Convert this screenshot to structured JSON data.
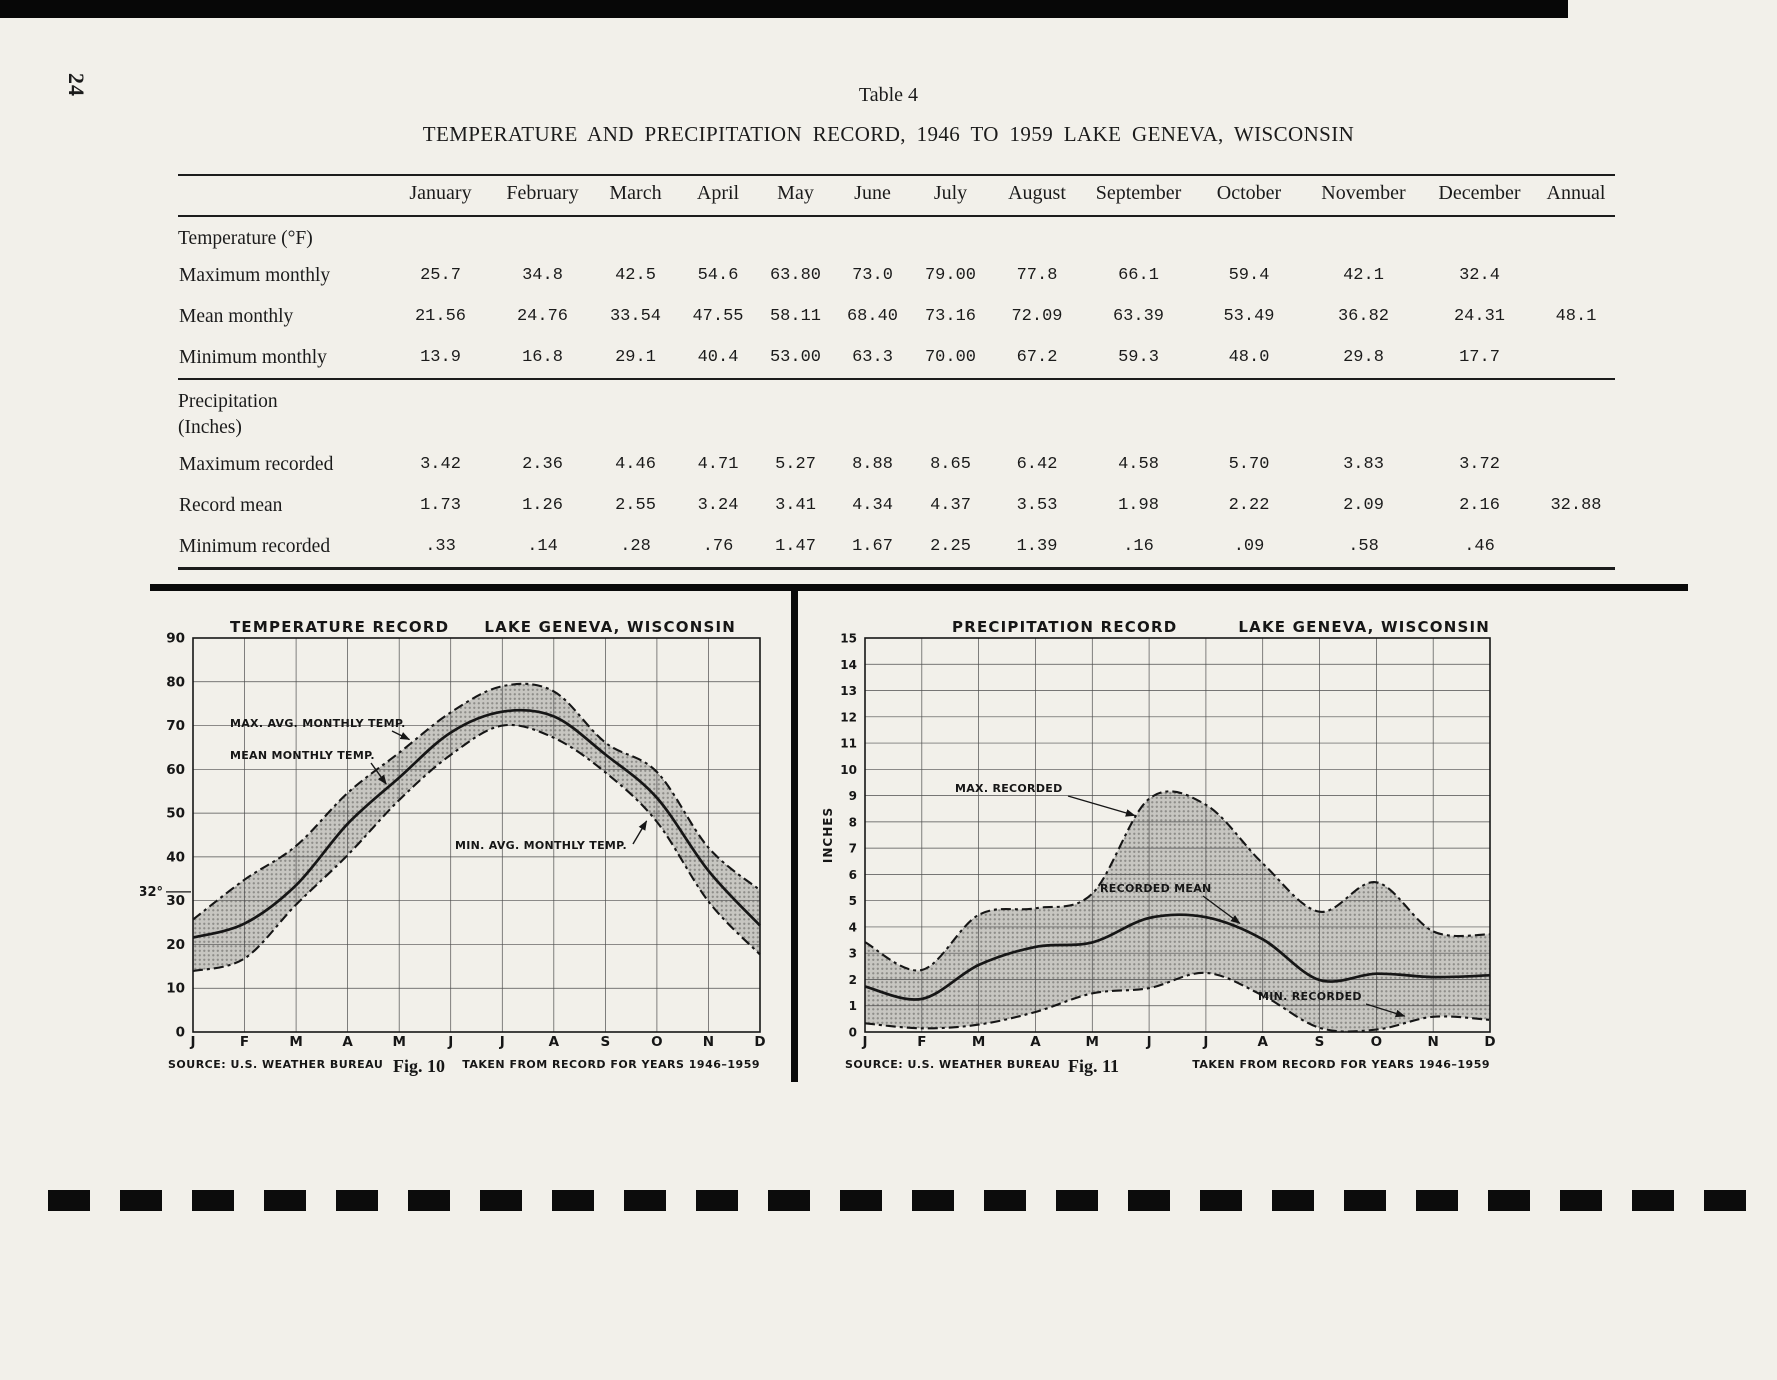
{
  "page": {
    "number": "24"
  },
  "table": {
    "caption": "Table 4",
    "title": "TEMPERATURE AND PRECIPITATION RECORD, 1946 TO 1959 LAKE GENEVA, WISCONSIN",
    "columns": [
      "January",
      "February",
      "March",
      "April",
      "May",
      "June",
      "July",
      "August",
      "September",
      "October",
      "November",
      "December",
      "Annual"
    ],
    "sections": [
      {
        "header_lines": [
          "Temperature (°F)"
        ],
        "rows": [
          {
            "label": "Maximum monthly",
            "values": [
              "25.7",
              "34.8",
              "42.5",
              "54.6",
              "63.80",
              "73.0",
              "79.00",
              "77.8",
              "66.1",
              "59.4",
              "42.1",
              "32.4",
              ""
            ]
          },
          {
            "label": "Mean monthly",
            "values": [
              "21.56",
              "24.76",
              "33.54",
              "47.55",
              "58.11",
              "68.40",
              "73.16",
              "72.09",
              "63.39",
              "53.49",
              "36.82",
              "24.31",
              "48.1"
            ]
          },
          {
            "label": "Minimum monthly",
            "values": [
              "13.9",
              "16.8",
              "29.1",
              "40.4",
              "53.00",
              "63.3",
              "70.00",
              "67.2",
              "59.3",
              "48.0",
              "29.8",
              "17.7",
              ""
            ]
          }
        ]
      },
      {
        "header_lines": [
          "Precipitation",
          "(Inches)"
        ],
        "rows": [
          {
            "label": "Maximum recorded",
            "values": [
              "3.42",
              "2.36",
              "4.46",
              "4.71",
              "5.27",
              "8.88",
              "8.65",
              "6.42",
              "4.58",
              "5.70",
              "3.83",
              "3.72",
              ""
            ]
          },
          {
            "label": "Record mean",
            "values": [
              "1.73",
              "1.26",
              "2.55",
              "3.24",
              "3.41",
              "4.34",
              "4.37",
              "3.53",
              "1.98",
              "2.22",
              "2.09",
              "2.16",
              "32.88"
            ]
          },
          {
            "label": "Minimum recorded",
            "values": [
              ".33",
              ".14",
              ".28",
              ".76",
              "1.47",
              "1.67",
              "2.25",
              "1.39",
              ".16",
              ".09",
              ".58",
              ".46",
              ""
            ]
          }
        ]
      }
    ]
  },
  "chart_data": [
    {
      "type": "area",
      "title": "TEMPERATURE RECORD",
      "location": "LAKE GENEVA, WISCONSIN",
      "x_labels": [
        "J",
        "F",
        "M",
        "A",
        "M",
        "J",
        "J",
        "A",
        "S",
        "O",
        "N",
        "D"
      ],
      "ylim": [
        0,
        90
      ],
      "ytick_step": 10,
      "freezing_label": "32°",
      "freezing_value": 32,
      "series": [
        {
          "name": "MAX. AVG. MONTHLY TEMP.",
          "style": "dashed",
          "values": [
            25.7,
            34.8,
            42.5,
            54.6,
            63.8,
            73.0,
            79.0,
            77.8,
            66.1,
            59.4,
            42.1,
            32.4
          ]
        },
        {
          "name": "MEAN MONTHLY TEMP.",
          "style": "solid",
          "values": [
            21.56,
            24.76,
            33.54,
            47.55,
            58.11,
            68.4,
            73.16,
            72.09,
            63.39,
            53.49,
            36.82,
            24.31
          ]
        },
        {
          "name": "MIN. AVG. MONTHLY TEMP.",
          "style": "dashed",
          "values": [
            13.9,
            16.8,
            29.1,
            40.4,
            53.0,
            63.3,
            70.0,
            67.2,
            59.3,
            48.0,
            29.8,
            17.7
          ]
        }
      ],
      "source": "SOURCE: U.S. WEATHER BUREAU",
      "fig_label": "Fig. 10",
      "note": "TAKEN FROM RECORD FOR YEARS 1946–1959"
    },
    {
      "type": "area",
      "title": "PRECIPITATION RECORD",
      "location": "LAKE GENEVA, WISCONSIN",
      "ylabel": "INCHES",
      "x_labels": [
        "J",
        "F",
        "M",
        "A",
        "M",
        "J",
        "J",
        "A",
        "S",
        "O",
        "N",
        "D"
      ],
      "ylim": [
        0,
        15
      ],
      "ytick_step": 1,
      "series": [
        {
          "name": "MAX. RECORDED",
          "style": "dashed",
          "values": [
            3.42,
            2.36,
            4.46,
            4.71,
            5.27,
            8.88,
            8.65,
            6.42,
            4.58,
            5.7,
            3.83,
            3.72
          ]
        },
        {
          "name": "RECORDED MEAN",
          "style": "solid",
          "values": [
            1.73,
            1.26,
            2.55,
            3.24,
            3.41,
            4.34,
            4.37,
            3.53,
            1.98,
            2.22,
            2.09,
            2.16
          ]
        },
        {
          "name": "MIN. RECORDED",
          "style": "dashed",
          "values": [
            0.33,
            0.14,
            0.28,
            0.76,
            1.47,
            1.67,
            2.25,
            1.39,
            0.16,
            0.09,
            0.58,
            0.46
          ]
        }
      ],
      "source": "SOURCE: U.S. WEATHER BUREAU",
      "fig_label": "Fig. 11",
      "note": "TAKEN FROM RECORD FOR YEARS 1946–1959"
    }
  ]
}
